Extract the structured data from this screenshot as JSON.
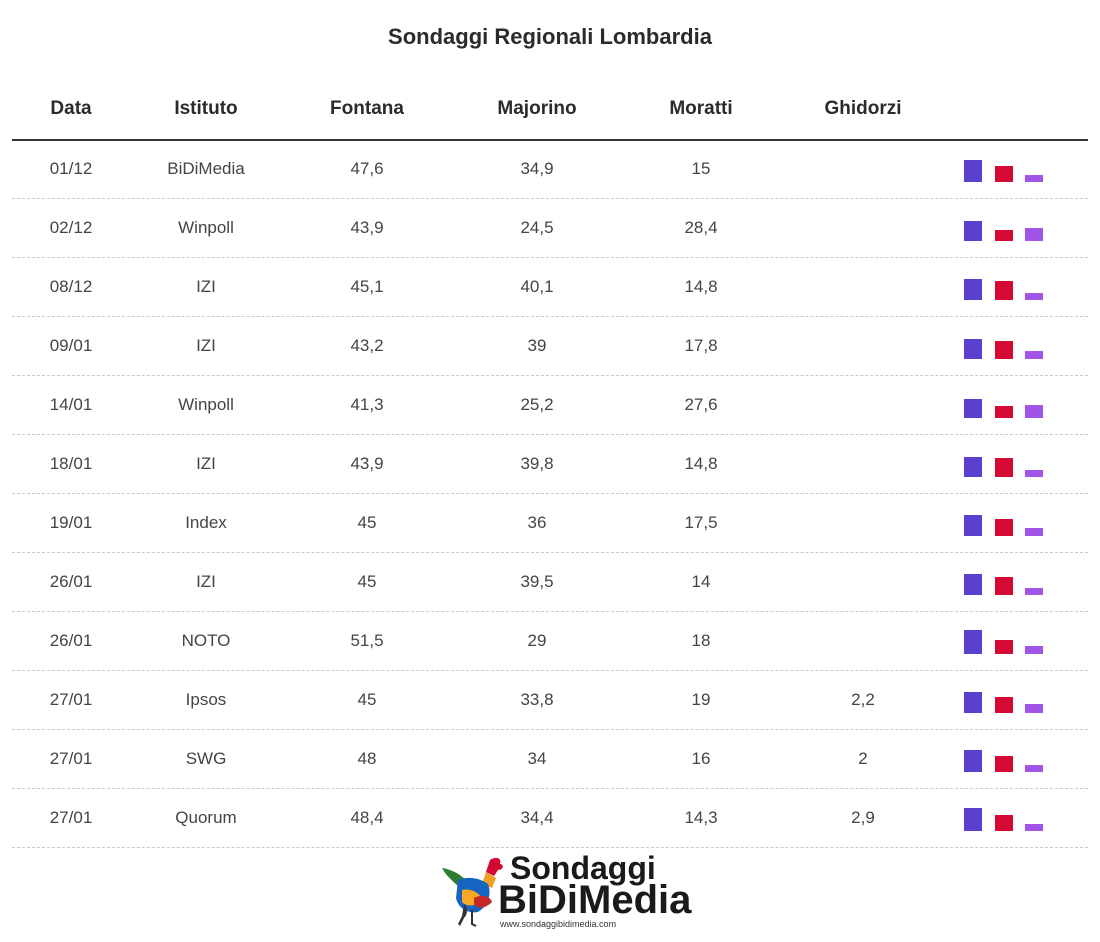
{
  "title": "Sondaggi Regionali Lombardia",
  "columns": [
    "Data",
    "Istituto",
    "Fontana",
    "Majorino",
    "Moratti",
    "Ghidorzi"
  ],
  "colors": {
    "fontana": "#5b3fd1",
    "majorino": "#d40a35",
    "moratti": "#a155e6"
  },
  "logo": {
    "line1": "Sondaggi",
    "line2": "BiDiMedia",
    "url": "www.sondaggibidimedia.com"
  },
  "chart_data": {
    "type": "table",
    "title": "Sondaggi Regionali Lombardia",
    "columns": [
      "Data",
      "Istituto",
      "Fontana",
      "Majorino",
      "Moratti",
      "Ghidorzi"
    ],
    "rows": [
      {
        "data": "01/12",
        "istituto": "BiDiMedia",
        "fontana": "47,6",
        "majorino": "34,9",
        "moratti": "15",
        "ghidorzi": ""
      },
      {
        "data": "02/12",
        "istituto": "Winpoll",
        "fontana": "43,9",
        "majorino": "24,5",
        "moratti": "28,4",
        "ghidorzi": ""
      },
      {
        "data": "08/12",
        "istituto": "IZI",
        "fontana": "45,1",
        "majorino": "40,1",
        "moratti": "14,8",
        "ghidorzi": ""
      },
      {
        "data": "09/01",
        "istituto": "IZI",
        "fontana": "43,2",
        "majorino": "39",
        "moratti": "17,8",
        "ghidorzi": ""
      },
      {
        "data": "14/01",
        "istituto": "Winpoll",
        "fontana": "41,3",
        "majorino": "25,2",
        "moratti": "27,6",
        "ghidorzi": ""
      },
      {
        "data": "18/01",
        "istituto": "IZI",
        "fontana": "43,9",
        "majorino": "39,8",
        "moratti": "14,8",
        "ghidorzi": ""
      },
      {
        "data": "19/01",
        "istituto": "Index",
        "fontana": "45",
        "majorino": "36",
        "moratti": "17,5",
        "ghidorzi": ""
      },
      {
        "data": "26/01",
        "istituto": "IZI",
        "fontana": "45",
        "majorino": "39,5",
        "moratti": "14",
        "ghidorzi": ""
      },
      {
        "data": "26/01",
        "istituto": "NOTO",
        "fontana": "51,5",
        "majorino": "29",
        "moratti": "18",
        "ghidorzi": ""
      },
      {
        "data": "27/01",
        "istituto": "Ipsos",
        "fontana": "45",
        "majorino": "33,8",
        "moratti": "19",
        "ghidorzi": "2,2"
      },
      {
        "data": "27/01",
        "istituto": "SWG",
        "fontana": "48",
        "majorino": "34",
        "moratti": "16",
        "ghidorzi": "2"
      },
      {
        "data": "27/01",
        "istituto": "Quorum",
        "fontana": "48,4",
        "majorino": "34,4",
        "moratti": "14,3",
        "ghidorzi": "2,9"
      }
    ],
    "sparkbars": {
      "type": "bar",
      "series": [
        "fontana",
        "majorino",
        "moratti"
      ],
      "ylim": [
        0,
        51.5
      ]
    }
  }
}
